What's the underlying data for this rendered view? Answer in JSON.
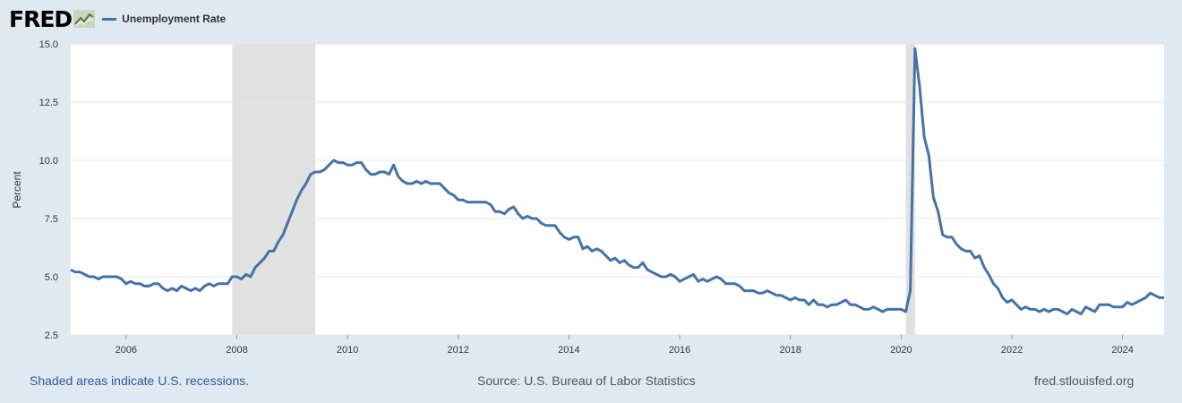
{
  "header": {
    "logo_text": "FRED",
    "series_label": "Unemployment Rate"
  },
  "colors": {
    "series": "#4572a7",
    "recession": "#e1e1e1",
    "background": "#e1e9f0"
  },
  "footer": {
    "recession_note": "Shaded areas indicate U.S. recessions.",
    "source": "Source: U.S. Bureau of Labor Statistics",
    "site": "fred.stlouisfed.org"
  },
  "chart_data": {
    "type": "line",
    "title": "Unemployment Rate",
    "xlabel": "",
    "ylabel": "Percent",
    "ylim": [
      2.5,
      15.0
    ],
    "xlim": [
      2005.0,
      2024.75
    ],
    "y_ticks": [
      "2.5",
      "5.0",
      "7.5",
      "10.0",
      "12.5",
      "15.0"
    ],
    "x_ticks": [
      "2006",
      "2008",
      "2010",
      "2012",
      "2014",
      "2016",
      "2018",
      "2020",
      "2022",
      "2024"
    ],
    "recessions": [
      [
        2007.917,
        2009.417
      ],
      [
        2020.083,
        2020.25
      ]
    ],
    "start": "2005-01",
    "frequency": "monthly",
    "series": [
      {
        "name": "Unemployment Rate",
        "values": [
          5.3,
          5.2,
          5.2,
          5.1,
          5.0,
          5.0,
          4.9,
          5.0,
          5.0,
          5.0,
          5.0,
          4.9,
          4.7,
          4.8,
          4.7,
          4.7,
          4.6,
          4.6,
          4.7,
          4.7,
          4.5,
          4.4,
          4.5,
          4.4,
          4.6,
          4.5,
          4.4,
          4.5,
          4.4,
          4.6,
          4.7,
          4.6,
          4.7,
          4.7,
          4.7,
          5.0,
          5.0,
          4.9,
          5.1,
          5.0,
          5.4,
          5.6,
          5.8,
          6.1,
          6.1,
          6.5,
          6.8,
          7.3,
          7.8,
          8.3,
          8.7,
          9.0,
          9.4,
          9.5,
          9.5,
          9.6,
          9.8,
          10.0,
          9.9,
          9.9,
          9.8,
          9.8,
          9.9,
          9.9,
          9.6,
          9.4,
          9.4,
          9.5,
          9.5,
          9.4,
          9.8,
          9.3,
          9.1,
          9.0,
          9.0,
          9.1,
          9.0,
          9.1,
          9.0,
          9.0,
          9.0,
          8.8,
          8.6,
          8.5,
          8.3,
          8.3,
          8.2,
          8.2,
          8.2,
          8.2,
          8.2,
          8.1,
          7.8,
          7.8,
          7.7,
          7.9,
          8.0,
          7.7,
          7.5,
          7.6,
          7.5,
          7.5,
          7.3,
          7.2,
          7.2,
          7.2,
          6.9,
          6.7,
          6.6,
          6.7,
          6.7,
          6.2,
          6.3,
          6.1,
          6.2,
          6.1,
          5.9,
          5.7,
          5.8,
          5.6,
          5.7,
          5.5,
          5.4,
          5.4,
          5.6,
          5.3,
          5.2,
          5.1,
          5.0,
          5.0,
          5.1,
          5.0,
          4.8,
          4.9,
          5.0,
          5.1,
          4.8,
          4.9,
          4.8,
          4.9,
          5.0,
          4.9,
          4.7,
          4.7,
          4.7,
          4.6,
          4.4,
          4.4,
          4.4,
          4.3,
          4.3,
          4.4,
          4.3,
          4.2,
          4.2,
          4.1,
          4.0,
          4.1,
          4.0,
          4.0,
          3.8,
          4.0,
          3.8,
          3.8,
          3.7,
          3.8,
          3.8,
          3.9,
          4.0,
          3.8,
          3.8,
          3.7,
          3.6,
          3.6,
          3.7,
          3.6,
          3.5,
          3.6,
          3.6,
          3.6,
          3.6,
          3.5,
          4.4,
          14.8,
          13.2,
          11.0,
          10.2,
          8.4,
          7.8,
          6.8,
          6.7,
          6.7,
          6.4,
          6.2,
          6.1,
          6.1,
          5.8,
          5.9,
          5.4,
          5.1,
          4.7,
          4.5,
          4.1,
          3.9,
          4.0,
          3.8,
          3.6,
          3.7,
          3.6,
          3.6,
          3.5,
          3.6,
          3.5,
          3.6,
          3.6,
          3.5,
          3.4,
          3.6,
          3.5,
          3.4,
          3.7,
          3.6,
          3.5,
          3.8,
          3.8,
          3.8,
          3.7,
          3.7,
          3.7,
          3.9,
          3.8,
          3.9,
          4.0,
          4.1,
          4.3,
          4.2,
          4.1,
          4.1
        ]
      }
    ]
  }
}
